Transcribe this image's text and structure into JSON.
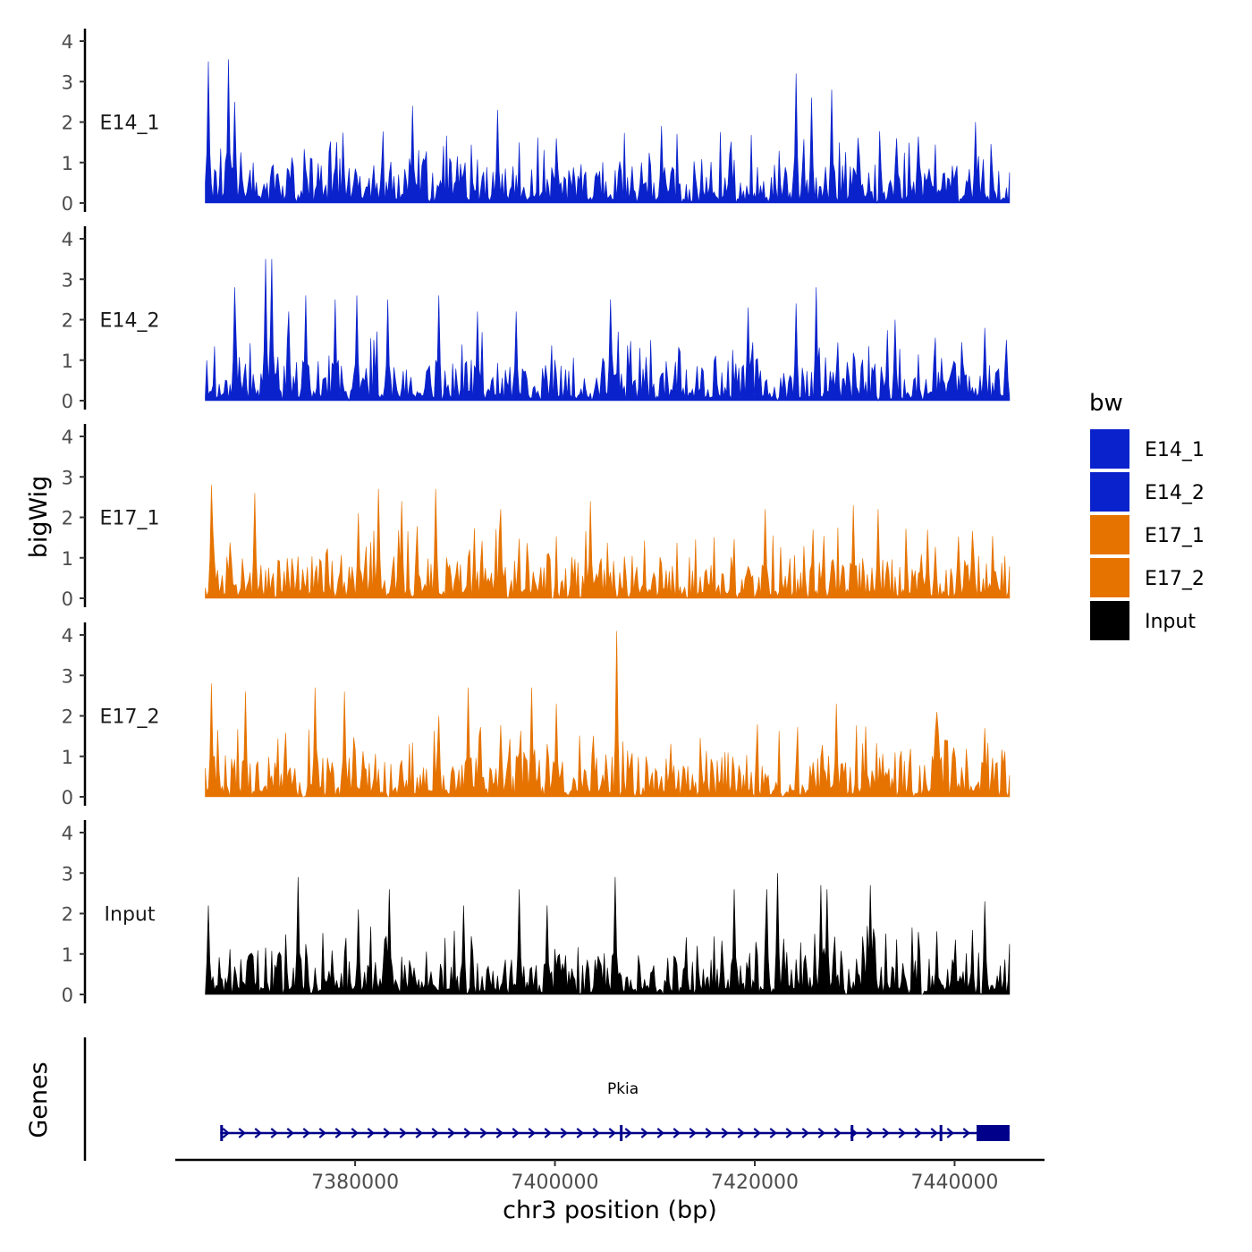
{
  "chart_data": {
    "type": "area",
    "title": "",
    "xlabel": "chr3 position (bp)",
    "ylabel": "bigWig",
    "genes_label": "Genes",
    "xlim": [
      7362000,
      7449000
    ],
    "signal_range": [
      7365000,
      7445500
    ],
    "x_ticks": [
      7380000,
      7400000,
      7420000,
      7440000
    ],
    "x_tick_labels": [
      "7380000",
      "7400000",
      "7420000",
      "7440000"
    ],
    "y_ticks": [
      0,
      1,
      2,
      3,
      4
    ],
    "y_tick_labels": [
      "0",
      "1",
      "2",
      "3",
      "4"
    ],
    "ylim": [
      0,
      4.2
    ],
    "legend": {
      "title": "bw",
      "position": "right",
      "entries": [
        {
          "label": "E14_1",
          "color": "#0A22CC"
        },
        {
          "label": "E14_2",
          "color": "#0A22CC"
        },
        {
          "label": "E17_1",
          "color": "#E67300"
        },
        {
          "label": "E17_2",
          "color": "#E67300"
        },
        {
          "label": "Input",
          "color": "#000000"
        }
      ]
    },
    "series": [
      {
        "name": "E14_1",
        "color": "#0A22CC",
        "max_value": 3.55,
        "peaks": [
          [
            7365300,
            3.5
          ],
          [
            7367300,
            3.55
          ],
          [
            7368000,
            2.5
          ],
          [
            7385800,
            2.4
          ],
          [
            7394300,
            2.3
          ],
          [
            7400200,
            1.6
          ],
          [
            7410600,
            1.9
          ],
          [
            7424200,
            3.2
          ],
          [
            7425700,
            2.6
          ],
          [
            7427700,
            2.8
          ],
          [
            7434200,
            1.6
          ],
          [
            7442100,
            2.0
          ]
        ]
      },
      {
        "name": "E14_2",
        "color": "#0A22CC",
        "max_value": 3.55,
        "peaks": [
          [
            7368000,
            2.8
          ],
          [
            7371100,
            3.5
          ],
          [
            7371700,
            3.5
          ],
          [
            7373300,
            2.2
          ],
          [
            7375000,
            2.6
          ],
          [
            7378000,
            2.5
          ],
          [
            7380200,
            2.6
          ],
          [
            7383300,
            2.5
          ],
          [
            7388400,
            2.6
          ],
          [
            7392200,
            2.2
          ],
          [
            7396100,
            2.2
          ],
          [
            7405600,
            2.5
          ],
          [
            7419400,
            2.3
          ],
          [
            7424100,
            2.4
          ],
          [
            7426100,
            2.8
          ],
          [
            7434000,
            2.0
          ],
          [
            7443100,
            1.8
          ],
          [
            7445200,
            1.5
          ]
        ]
      },
      {
        "name": "E17_1",
        "color": "#E67300",
        "max_value": 2.8,
        "peaks": [
          [
            7365600,
            2.8
          ],
          [
            7369900,
            2.6
          ],
          [
            7380400,
            2.1
          ],
          [
            7382300,
            2.7
          ],
          [
            7384600,
            2.4
          ],
          [
            7388000,
            2.7
          ],
          [
            7394500,
            2.2
          ],
          [
            7403600,
            2.4
          ],
          [
            7421000,
            2.2
          ],
          [
            7429800,
            2.3
          ],
          [
            7432400,
            2.2
          ],
          [
            7437300,
            1.7
          ]
        ]
      },
      {
        "name": "E17_2",
        "color": "#E67300",
        "max_value": 4.1,
        "peaks": [
          [
            7365600,
            2.8
          ],
          [
            7369000,
            2.6
          ],
          [
            7376000,
            2.7
          ],
          [
            7379000,
            2.6
          ],
          [
            7388300,
            2.0
          ],
          [
            7391300,
            2.7
          ],
          [
            7397700,
            2.7
          ],
          [
            7400100,
            2.3
          ],
          [
            7406200,
            4.1
          ],
          [
            7428200,
            2.3
          ],
          [
            7438200,
            2.1
          ],
          [
            7443000,
            1.7
          ]
        ]
      },
      {
        "name": "Input",
        "color": "#000000",
        "max_value": 3.0,
        "peaks": [
          [
            7365300,
            2.2
          ],
          [
            7374300,
            2.9
          ],
          [
            7380300,
            2.1
          ],
          [
            7383400,
            2.6
          ],
          [
            7390800,
            2.2
          ],
          [
            7396400,
            2.6
          ],
          [
            7399200,
            2.2
          ],
          [
            7406000,
            2.9
          ],
          [
            7417900,
            2.6
          ],
          [
            7421200,
            2.6
          ],
          [
            7422300,
            3.0
          ],
          [
            7426600,
            2.7
          ],
          [
            7427300,
            2.6
          ],
          [
            7431500,
            2.7
          ],
          [
            7443100,
            2.3
          ]
        ]
      }
    ],
    "genes": [
      {
        "name": "Pkia",
        "start": 7366500,
        "end": 7445500,
        "strand": "+",
        "exons": [
          [
            7366500,
            7366600
          ],
          [
            7406500,
            7406600
          ],
          [
            7429600,
            7429700
          ],
          [
            7438500,
            7438600
          ],
          [
            7442200,
            7445500
          ]
        ]
      }
    ]
  }
}
